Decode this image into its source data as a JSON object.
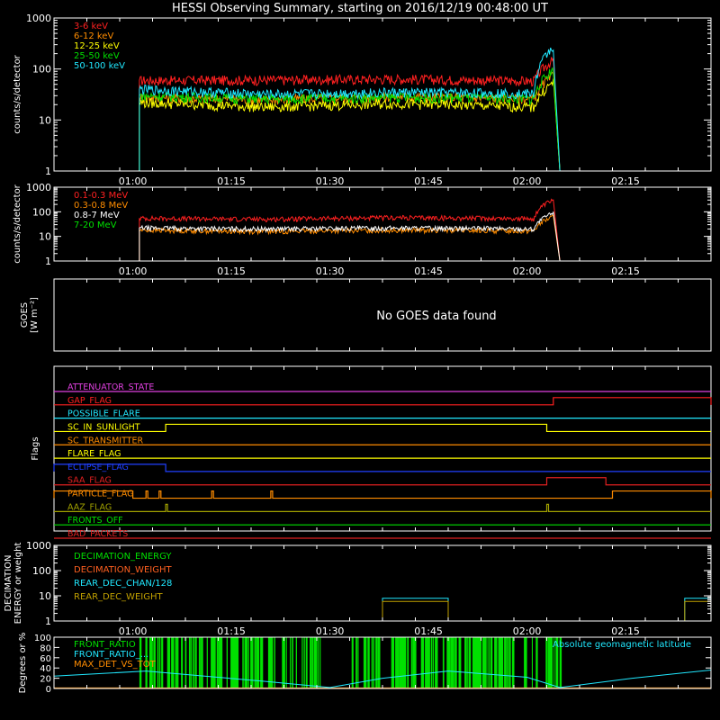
{
  "title": "HESSI Observing Summary, starting on 2016/12/19 00:48:00 UT",
  "time_ticks": [
    "01:00",
    "01:15",
    "01:30",
    "01:45",
    "02:00",
    "02:15"
  ],
  "chart_data": [
    {
      "type": "line",
      "panel": "photometer-low",
      "ylabel": "counts/s/detector",
      "yscale": "log",
      "ylim": [
        1,
        1000
      ],
      "yticks": [
        "1",
        "10",
        "100",
        "1000"
      ],
      "xlim": [
        "00:48",
        "02:28"
      ],
      "series": [
        {
          "name": "3-6 keV",
          "color": "#ff2020",
          "points": [
            [
              "00:48",
              1
            ],
            [
              "01:01",
              1
            ],
            [
              "01:01",
              60
            ],
            [
              "01:20",
              61
            ],
            [
              "01:40",
              64
            ],
            [
              "01:55",
              60
            ],
            [
              "02:01",
              58
            ],
            [
              "02:04",
              150
            ],
            [
              "02:05",
              1
            ],
            [
              "02:28",
              1
            ]
          ]
        },
        {
          "name": "6-12 keV",
          "color": "#ff8c00",
          "points": [
            [
              "00:48",
              1
            ],
            [
              "01:01",
              1
            ],
            [
              "01:01",
              28
            ],
            [
              "01:20",
              25
            ],
            [
              "01:40",
              29
            ],
            [
              "01:55",
              27
            ],
            [
              "02:01",
              26
            ],
            [
              "02:04",
              75
            ],
            [
              "02:05",
              1
            ],
            [
              "02:28",
              1
            ]
          ]
        },
        {
          "name": "12-25 keV",
          "color": "#ffff00",
          "points": [
            [
              "00:48",
              1
            ],
            [
              "01:01",
              1
            ],
            [
              "01:01",
              22
            ],
            [
              "01:20",
              18
            ],
            [
              "01:40",
              21
            ],
            [
              "01:55",
              19
            ],
            [
              "02:01",
              18
            ],
            [
              "02:04",
              55
            ],
            [
              "02:05",
              1
            ],
            [
              "02:28",
              1
            ]
          ]
        },
        {
          "name": "25-50 keV",
          "color": "#00e000",
          "points": [
            [
              "00:48",
              1
            ],
            [
              "01:01",
              1
            ],
            [
              "01:01",
              30
            ],
            [
              "01:20",
              26
            ],
            [
              "01:40",
              28
            ],
            [
              "01:55",
              27
            ],
            [
              "02:01",
              26
            ],
            [
              "02:04",
              100
            ],
            [
              "02:05",
              1
            ],
            [
              "02:28",
              1
            ]
          ]
        },
        {
          "name": "50-100 keV",
          "color": "#20e8ff",
          "points": [
            [
              "00:48",
              1
            ],
            [
              "01:01",
              1
            ],
            [
              "01:01",
              40
            ],
            [
              "01:20",
              32
            ],
            [
              "01:40",
              35
            ],
            [
              "01:55",
              34
            ],
            [
              "02:01",
              33
            ],
            [
              "02:04",
              280
            ],
            [
              "02:05",
              1
            ],
            [
              "02:28",
              1
            ]
          ]
        }
      ]
    },
    {
      "type": "line",
      "panel": "photometer-high",
      "ylabel": "counts/s/detector",
      "yscale": "log",
      "ylim": [
        1,
        1000
      ],
      "yticks": [
        "1",
        "10",
        "100",
        "1000"
      ],
      "xlim": [
        "00:48",
        "02:28"
      ],
      "series": [
        {
          "name": "0.1-0.3 MeV",
          "color": "#ff2020",
          "points": [
            [
              "00:48",
              1
            ],
            [
              "01:01",
              1
            ],
            [
              "01:01",
              55
            ],
            [
              "01:20",
              50
            ],
            [
              "01:40",
              58
            ],
            [
              "01:55",
              55
            ],
            [
              "02:01",
              52
            ],
            [
              "02:04",
              300
            ],
            [
              "02:05",
              1
            ],
            [
              "02:28",
              1
            ]
          ]
        },
        {
          "name": "0.3-0.8 MeV",
          "color": "#ff8c00",
          "points": [
            [
              "00:48",
              1
            ],
            [
              "01:01",
              1
            ],
            [
              "01:01",
              18
            ],
            [
              "01:20",
              16
            ],
            [
              "01:40",
              18
            ],
            [
              "01:55",
              17
            ],
            [
              "02:01",
              17
            ],
            [
              "02:04",
              65
            ],
            [
              "02:05",
              1
            ],
            [
              "02:28",
              1
            ]
          ]
        },
        {
          "name": "0.8-7 MeV",
          "color": "#ffffff",
          "points": [
            [
              "00:48",
              1
            ],
            [
              "01:01",
              1
            ],
            [
              "01:01",
              22
            ],
            [
              "01:20",
              20
            ],
            [
              "01:40",
              22
            ],
            [
              "01:55",
              21
            ],
            [
              "02:01",
              20
            ],
            [
              "02:04",
              90
            ],
            [
              "02:05",
              1
            ],
            [
              "02:28",
              1
            ]
          ]
        },
        {
          "name": "7-20 MeV",
          "color": "#00e000",
          "points": [
            [
              "00:48",
              1
            ],
            [
              "02:28",
              1
            ]
          ]
        }
      ]
    },
    {
      "type": "line",
      "panel": "goes",
      "ylabel_line1": "GOES",
      "ylabel_line2": "[W m⁻²]",
      "message": "No GOES data found",
      "series": []
    },
    {
      "type": "line",
      "panel": "flags",
      "ylabel": "Flags",
      "xlim": [
        "00:48",
        "02:28"
      ],
      "flags": [
        {
          "name": "ATTENUATOR_STATE",
          "color": "#e040e0",
          "on": []
        },
        {
          "name": "GAP_FLAG",
          "color": "#ff2020",
          "on": [
            [
              "02:04",
              "02:28"
            ]
          ]
        },
        {
          "name": "POSSIBLE_FLARE",
          "color": "#20e8ff",
          "on": []
        },
        {
          "name": "SC_IN_SUNLIGHT",
          "color": "#ffff00",
          "on": [
            [
              "01:05",
              "02:03"
            ]
          ]
        },
        {
          "name": "SC_TRANSMITTER",
          "color": "#ff8c00",
          "on": []
        },
        {
          "name": "FLARE_FLAG",
          "color": "#ffff00",
          "on": []
        },
        {
          "name": "ECLIPSE_FLAG",
          "color": "#2040ff",
          "on": [
            [
              "00:48",
              "01:05"
            ]
          ]
        },
        {
          "name": "SAA_FLAG",
          "color": "#e02020",
          "on": [
            [
              "02:03",
              "02:12"
            ]
          ]
        },
        {
          "name": "PARTICLE_FLAG",
          "color": "#ff8c00",
          "on": [
            [
              "00:48",
              "01:00"
            ],
            [
              "01:02",
              "01:02"
            ],
            [
              "01:04",
              "01:04"
            ],
            [
              "01:12",
              "01:12"
            ],
            [
              "01:21",
              "01:21"
            ],
            [
              "02:13",
              "02:28"
            ]
          ]
        },
        {
          "name": "AAZ_FLAG",
          "color": "#a0a000",
          "on": [
            [
              "01:05",
              "01:05"
            ],
            [
              "02:03",
              "02:03"
            ]
          ]
        },
        {
          "name": "FRONTS_OFF",
          "color": "#00e000",
          "on": []
        },
        {
          "name": "BAD_PACKETS",
          "color": "#e02020",
          "on": []
        }
      ]
    },
    {
      "type": "line",
      "panel": "decimation",
      "ylabel_line1": "DECIMATION",
      "ylabel_line2": "ENERGY or weight",
      "yscale": "log",
      "ylim": [
        1,
        1000
      ],
      "yticks": [
        "1",
        "10",
        "100",
        "1000"
      ],
      "xlim": [
        "00:48",
        "02:28"
      ],
      "series": [
        {
          "name": "DECIMATION_ENERGY",
          "color": "#00e000",
          "points": []
        },
        {
          "name": "DECIMATION_WEIGHT",
          "color": "#ff6020",
          "points": []
        },
        {
          "name": "REAR_DEC_CHAN/128",
          "color": "#20e8ff",
          "points": [
            [
              "00:48",
              1
            ],
            [
              "01:38",
              1
            ],
            [
              "01:38",
              8
            ],
            [
              "01:48",
              8
            ],
            [
              "01:48",
              1
            ],
            [
              "02:24",
              1
            ],
            [
              "02:24",
              8
            ],
            [
              "02:28",
              8
            ]
          ]
        },
        {
          "name": "REAR_DEC_WEIGHT",
          "color": "#c0a000",
          "points": [
            [
              "00:48",
              1
            ],
            [
              "01:38",
              1
            ],
            [
              "01:38",
              6
            ],
            [
              "01:48",
              6
            ],
            [
              "01:48",
              1
            ],
            [
              "02:24",
              1
            ],
            [
              "02:24",
              6
            ],
            [
              "02:28",
              6
            ]
          ]
        }
      ]
    },
    {
      "type": "line",
      "panel": "ratio",
      "ylabel": "Degrees or %",
      "ylim": [
        0,
        100
      ],
      "yticks": [
        "0",
        "20",
        "40",
        "60",
        "80",
        "100"
      ],
      "xlim": [
        "00:48",
        "02:28"
      ],
      "right_label": "Absolute geomagnetic latitude",
      "series": [
        {
          "name": "FRONT_RATIO",
          "color": "#00e000",
          "points": []
        },
        {
          "name": "FRONT_RATIO_...",
          "color": "#20e8ff",
          "points": []
        },
        {
          "name": "MAX_DET_VS_TOT",
          "color": "#ff8c00",
          "points": []
        },
        {
          "name": "",
          "color": "#20e8ff",
          "points": [
            [
              "00:48",
              24
            ],
            [
              "01:02",
              34
            ],
            [
              "01:20",
              14
            ],
            [
              "01:30",
              2
            ],
            [
              "01:38",
              20
            ],
            [
              "01:48",
              34
            ],
            [
              "02:00",
              22
            ],
            [
              "02:05",
              2
            ],
            [
              "02:16",
              20
            ],
            [
              "02:28",
              36
            ]
          ]
        }
      ],
      "bursts": [
        [
          "01:01",
          "01:29"
        ],
        [
          "01:33",
          "02:05"
        ]
      ]
    }
  ]
}
